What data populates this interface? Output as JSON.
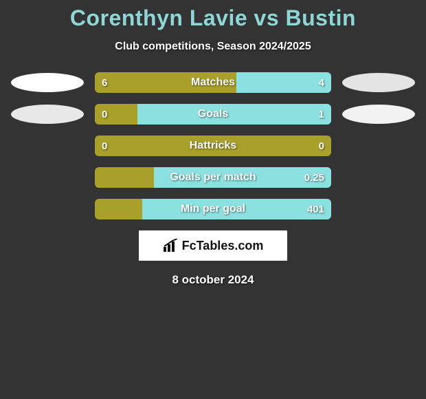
{
  "title": "Corenthyn Lavie vs Bustin",
  "subtitle": "Club competitions, Season 2024/2025",
  "date": "8 october 2024",
  "logo_text": "FcTables.com",
  "colors": {
    "background": "#333333",
    "title": "#8fd6d6",
    "text": "#ffffff",
    "player1_bar": "#a8a02a",
    "player2_bar": "#8be0e0",
    "ellipse_left_top": "#ffffff",
    "ellipse_left_bottom": "#e8e8e8",
    "ellipse_right_top": "#e4e4e4",
    "ellipse_right_bottom": "#f2f2f2",
    "logo_bg": "#ffffff",
    "logo_fg": "#111111"
  },
  "rows": [
    {
      "label": "Matches",
      "left_value": "6",
      "right_value": "4",
      "left_pct": 60,
      "right_pct": 40,
      "show_ellipses": true,
      "left_ellipse_color": "#ffffff",
      "right_ellipse_color": "#e4e4e4"
    },
    {
      "label": "Goals",
      "left_value": "0",
      "right_value": "1",
      "left_pct": 18,
      "right_pct": 82,
      "show_ellipses": true,
      "left_ellipse_color": "#e8e8e8",
      "right_ellipse_color": "#f2f2f2"
    },
    {
      "label": "Hattricks",
      "left_value": "0",
      "right_value": "0",
      "left_pct": 100,
      "right_pct": 0,
      "show_ellipses": false
    },
    {
      "label": "Goals per match",
      "left_value": "",
      "right_value": "0.25",
      "left_pct": 25,
      "right_pct": 75,
      "show_ellipses": false
    },
    {
      "label": "Min per goal",
      "left_value": "",
      "right_value": "401",
      "left_pct": 20,
      "right_pct": 80,
      "show_ellipses": false
    }
  ]
}
